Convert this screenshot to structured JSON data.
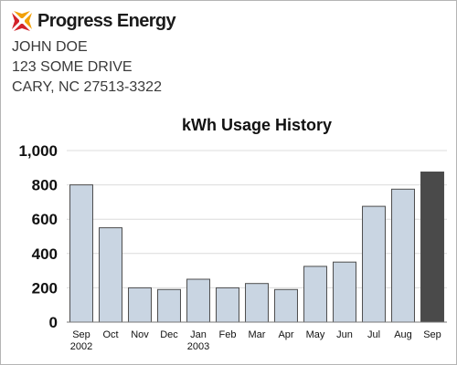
{
  "header": {
    "brand_name": "Progress Energy",
    "logo_icon": "progress-energy-logo-icon"
  },
  "customer": {
    "name": "JOHN DOE",
    "street": "123 SOME DRIVE",
    "city_state_zip": "CARY, NC 27513-3322"
  },
  "colors": {
    "bar": "#c9d5e2",
    "bar_highlight": "#4a4a4a",
    "bar_stroke": "#4d4d4d",
    "grid": "#dcdcdc",
    "logo_red": "#d2232a",
    "logo_orange": "#f2a007"
  },
  "chart_data": {
    "type": "bar",
    "title": "kWh Usage History",
    "xlabel": "",
    "ylabel": "",
    "ylim": [
      0,
      1000
    ],
    "yticks": [
      "0",
      "200",
      "400",
      "600",
      "800",
      "1,000"
    ],
    "categories": [
      "Sep",
      "Oct",
      "Nov",
      "Dec",
      "Jan",
      "Feb",
      "Mar",
      "Apr",
      "May",
      "Jun",
      "Jul",
      "Aug",
      "Sep"
    ],
    "category_sublabels": [
      "2002",
      "",
      "",
      "",
      "2003",
      "",
      "",
      "",
      "",
      "",
      "",
      "",
      ""
    ],
    "values": [
      800,
      550,
      200,
      190,
      250,
      200,
      225,
      190,
      325,
      350,
      675,
      775,
      875
    ],
    "highlight_index": 12,
    "grid": true,
    "legend": "none"
  }
}
